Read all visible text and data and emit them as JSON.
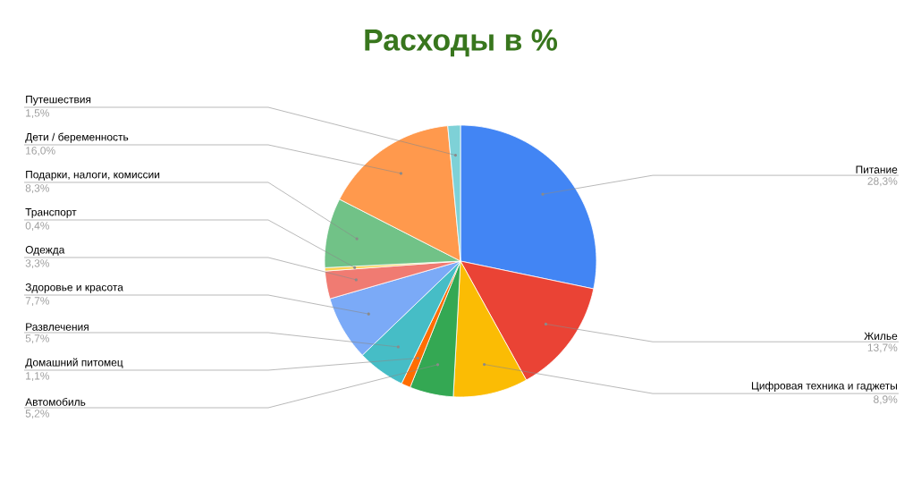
{
  "chart_data": {
    "type": "pie",
    "title": "Расходы в %",
    "categories": [
      "Питание",
      "Жилье",
      "Цифровая техника и гаджеты",
      "Автомобиль",
      "Домашний питомец",
      "Развлечения",
      "Здоровье и красота",
      "Одежда",
      "Транспорт",
      "Подарки, налоги, комиссии",
      "Дети / беременность",
      "Путешествия"
    ],
    "values": [
      28.3,
      13.7,
      8.9,
      5.2,
      1.1,
      5.7,
      7.7,
      3.3,
      0.4,
      8.3,
      16.0,
      1.5
    ],
    "value_labels": [
      "28,3%",
      "13,7%",
      "8,9%",
      "5,2%",
      "1,1%",
      "5,7%",
      "7,7%",
      "3,3%",
      "0,4%",
      "8,3%",
      "16,0%",
      "1,5%"
    ],
    "colors": [
      "#4285f4",
      "#ea4335",
      "#fbbc04",
      "#34a853",
      "#ff6d01",
      "#46bdc6",
      "#7baaf7",
      "#f07b72",
      "#fcd04f",
      "#71c287",
      "#ff994d",
      "#7ed1d7"
    ]
  }
}
